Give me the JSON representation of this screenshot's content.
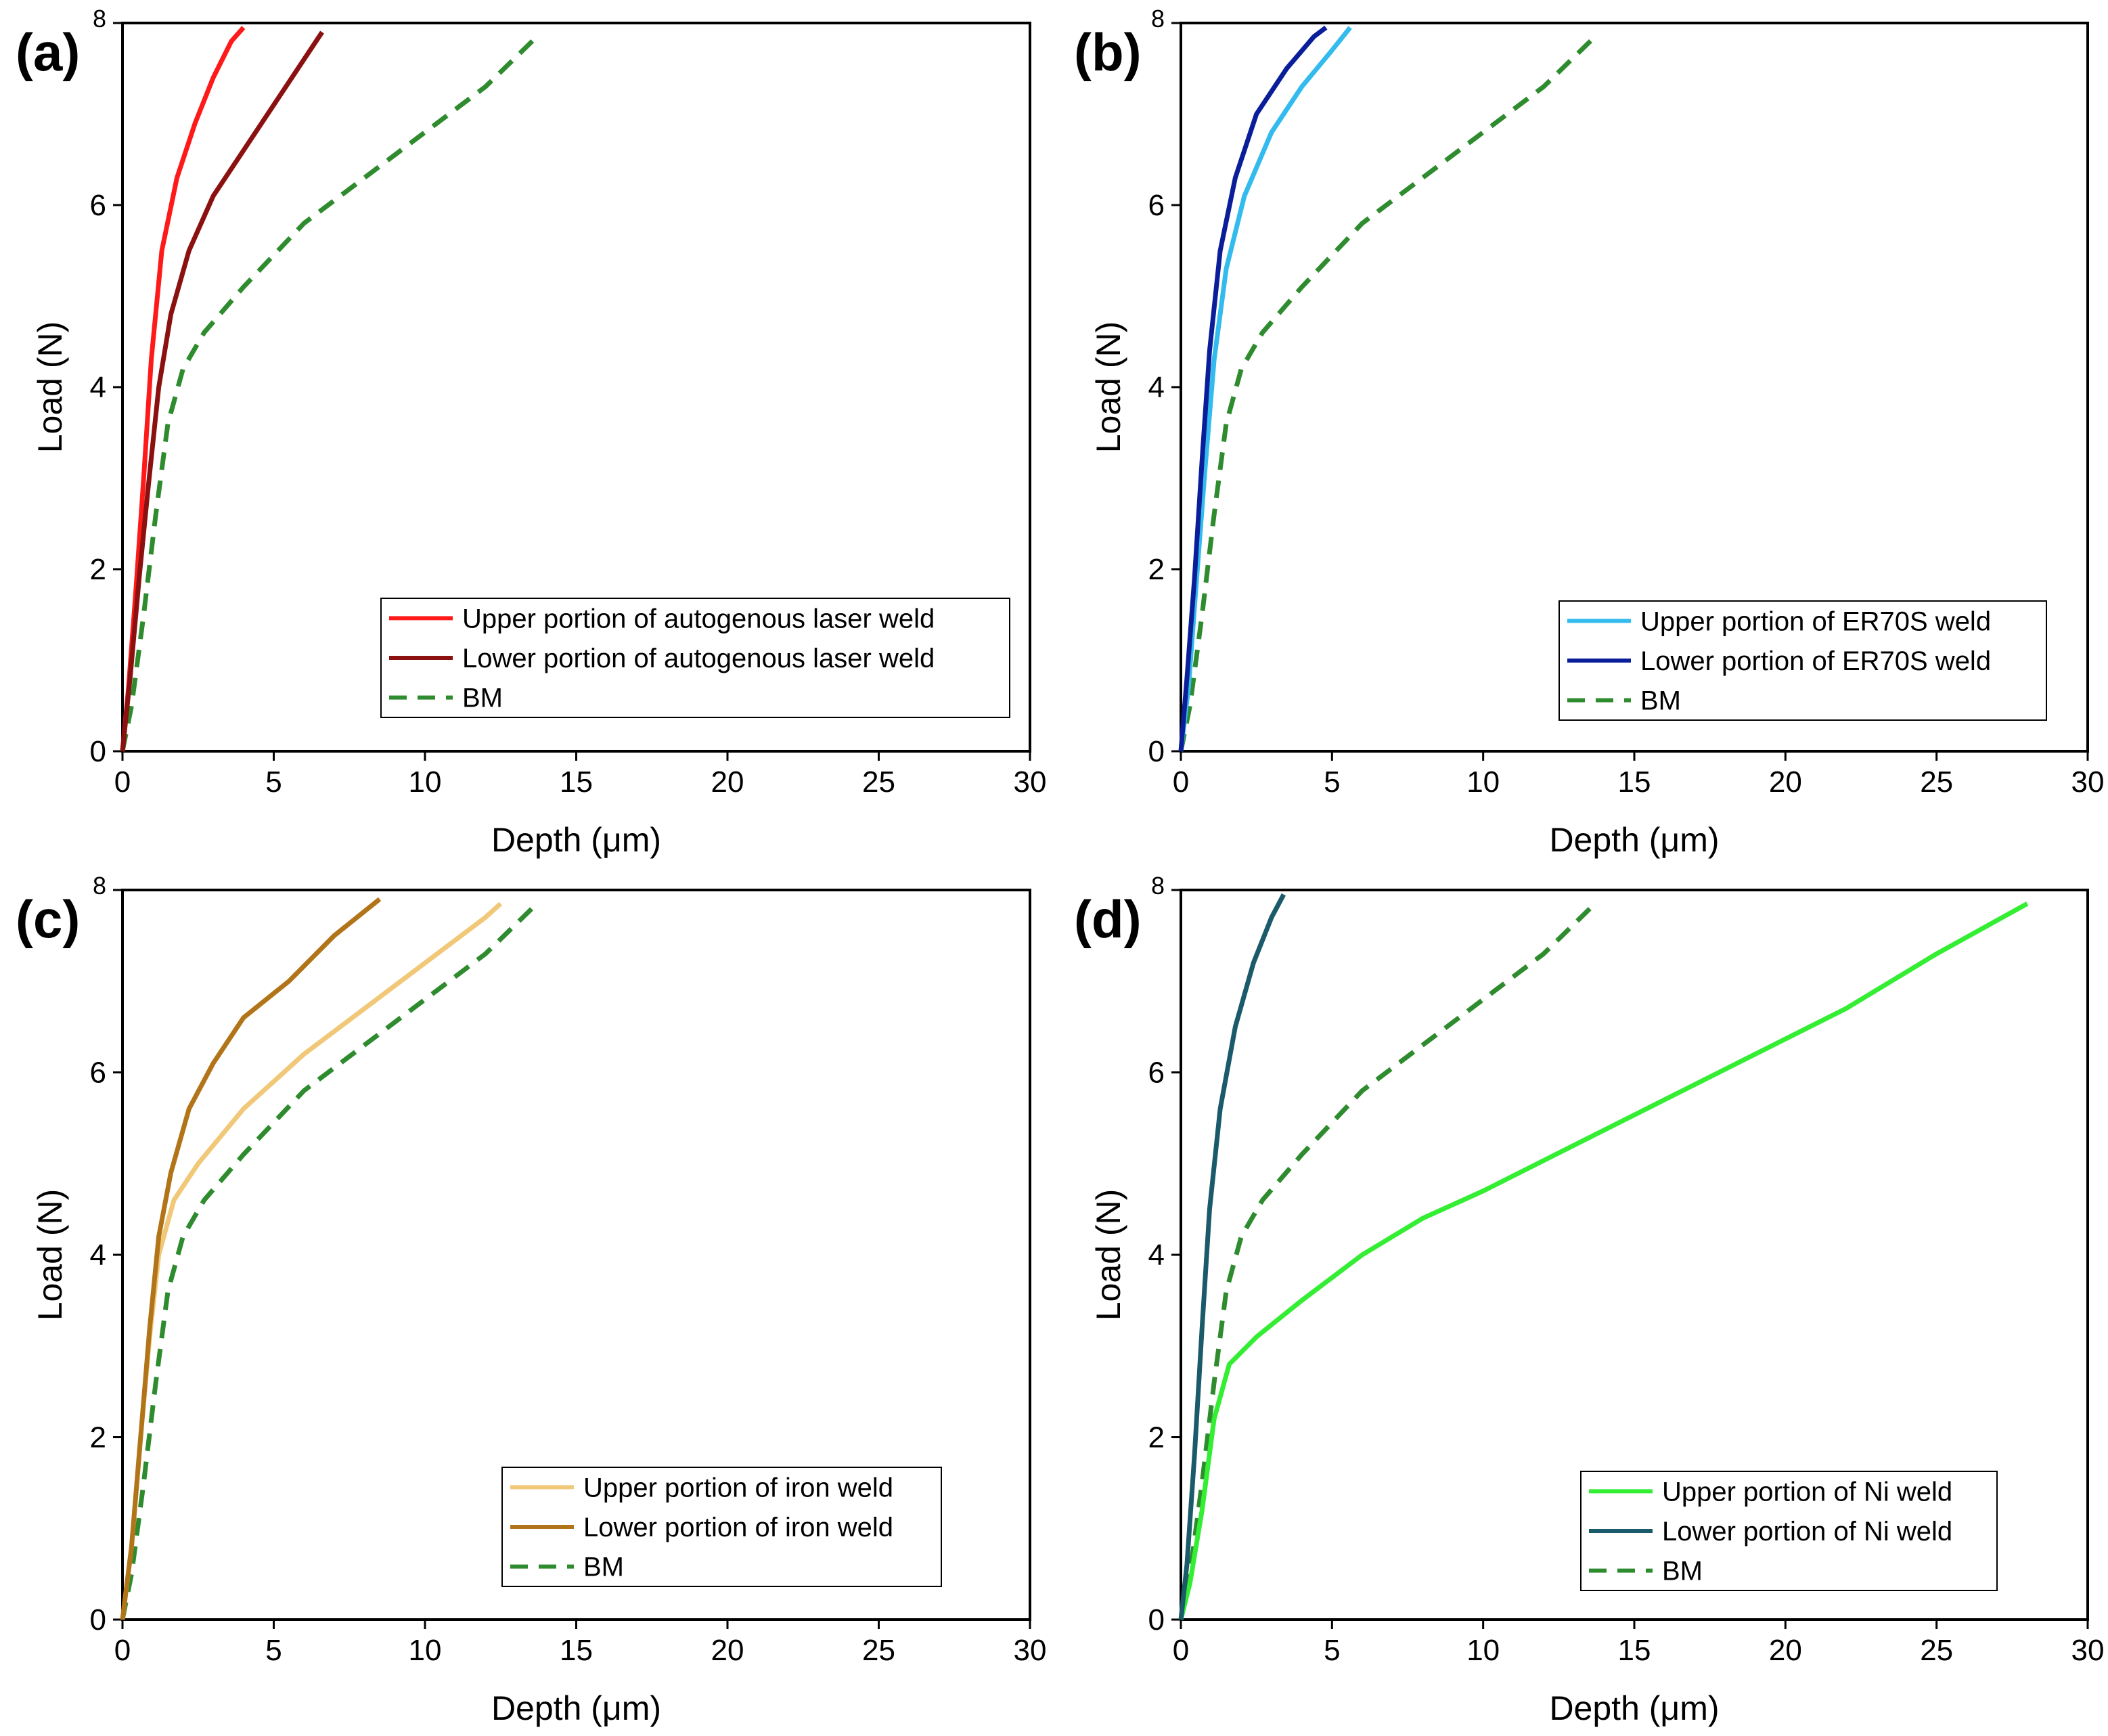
{
  "chart_data": [
    {
      "type": "line",
      "panel_label": "(a)",
      "xlabel": "Depth (μm)",
      "ylabel": "Load (N)",
      "xlim": [
        0,
        30
      ],
      "ylim": [
        0,
        8
      ],
      "xticks": [
        "0",
        "5",
        "10",
        "15",
        "20",
        "25",
        "30"
      ],
      "yticks": [
        "0",
        "2",
        "4",
        "6",
        "8"
      ],
      "legend_position": "bottom-right",
      "series": [
        {
          "name": "Upper portion of autogenous laser weld",
          "color": "#ff1a1a",
          "dash": "solid",
          "points": [
            [
              0,
              0
            ],
            [
              0.2,
              0.7
            ],
            [
              0.45,
              1.8
            ],
            [
              0.7,
              3.0
            ],
            [
              0.95,
              4.3
            ],
            [
              1.3,
              5.5
            ],
            [
              1.8,
              6.3
            ],
            [
              2.4,
              6.9
            ],
            [
              3.0,
              7.4
            ],
            [
              3.6,
              7.8
            ],
            [
              4.0,
              7.95
            ]
          ]
        },
        {
          "name": "Lower portion of autogenous laser weld",
          "color": "#8b1010",
          "dash": "solid",
          "points": [
            [
              0,
              0
            ],
            [
              0.25,
              0.8
            ],
            [
              0.55,
              1.9
            ],
            [
              0.85,
              2.9
            ],
            [
              1.2,
              4.0
            ],
            [
              1.6,
              4.8
            ],
            [
              2.2,
              5.5
            ],
            [
              3.0,
              6.1
            ],
            [
              4.0,
              6.6
            ],
            [
              5.0,
              7.1
            ],
            [
              6.0,
              7.6
            ],
            [
              6.6,
              7.9
            ]
          ]
        },
        {
          "name": "BM",
          "color": "#2e8b2e",
          "dash": "dashed",
          "points": [
            [
              0,
              0
            ],
            [
              0.3,
              0.5
            ],
            [
              0.7,
              1.5
            ],
            [
              1.1,
              2.6
            ],
            [
              1.5,
              3.6
            ],
            [
              2.0,
              4.2
            ],
            [
              2.7,
              4.6
            ],
            [
              4.0,
              5.1
            ],
            [
              6.0,
              5.8
            ],
            [
              8.0,
              6.3
            ],
            [
              10.0,
              6.8
            ],
            [
              12.0,
              7.3
            ],
            [
              13.7,
              7.85
            ]
          ]
        }
      ]
    },
    {
      "type": "line",
      "panel_label": "(b)",
      "xlabel": "Depth (μm)",
      "ylabel": "Load (N)",
      "xlim": [
        0,
        30
      ],
      "ylim": [
        0,
        8
      ],
      "xticks": [
        "0",
        "5",
        "10",
        "15",
        "20",
        "25",
        "30"
      ],
      "yticks": [
        "0",
        "2",
        "4",
        "6",
        "8"
      ],
      "legend_position": "bottom-right",
      "series": [
        {
          "name": "Upper portion of ER70S weld",
          "color": "#33bbee",
          "dash": "solid",
          "points": [
            [
              0,
              0
            ],
            [
              0.25,
              0.7
            ],
            [
              0.5,
              1.8
            ],
            [
              0.8,
              3.1
            ],
            [
              1.1,
              4.3
            ],
            [
              1.5,
              5.3
            ],
            [
              2.1,
              6.1
            ],
            [
              3.0,
              6.8
            ],
            [
              4.0,
              7.3
            ],
            [
              5.0,
              7.7
            ],
            [
              5.6,
              7.95
            ]
          ]
        },
        {
          "name": "Lower portion of ER70S weld",
          "color": "#0a1e9a",
          "dash": "solid",
          "points": [
            [
              0,
              0
            ],
            [
              0.2,
              0.8
            ],
            [
              0.45,
              1.9
            ],
            [
              0.7,
              3.2
            ],
            [
              0.95,
              4.4
            ],
            [
              1.3,
              5.5
            ],
            [
              1.8,
              6.3
            ],
            [
              2.5,
              7.0
            ],
            [
              3.5,
              7.5
            ],
            [
              4.4,
              7.85
            ],
            [
              4.8,
              7.95
            ]
          ]
        },
        {
          "name": "BM",
          "color": "#2e8b2e",
          "dash": "dashed",
          "points": [
            [
              0,
              0
            ],
            [
              0.3,
              0.5
            ],
            [
              0.7,
              1.5
            ],
            [
              1.1,
              2.6
            ],
            [
              1.5,
              3.6
            ],
            [
              2.0,
              4.2
            ],
            [
              2.7,
              4.6
            ],
            [
              4.0,
              5.1
            ],
            [
              6.0,
              5.8
            ],
            [
              8.0,
              6.3
            ],
            [
              10.0,
              6.8
            ],
            [
              12.0,
              7.3
            ],
            [
              13.7,
              7.85
            ]
          ]
        }
      ]
    },
    {
      "type": "line",
      "panel_label": "(c)",
      "xlabel": "Depth (μm)",
      "ylabel": "Load (N)",
      "xlim": [
        0,
        30
      ],
      "ylim": [
        0,
        8
      ],
      "xticks": [
        "0",
        "5",
        "10",
        "15",
        "20",
        "25",
        "30"
      ],
      "yticks": [
        "0",
        "2",
        "4",
        "6",
        "8"
      ],
      "legend_position": "bottom-right",
      "series": [
        {
          "name": "Upper portion of iron weld",
          "color": "#f0c878",
          "dash": "solid",
          "points": [
            [
              0,
              0
            ],
            [
              0.3,
              0.8
            ],
            [
              0.6,
              2.0
            ],
            [
              0.9,
              3.1
            ],
            [
              1.2,
              4.0
            ],
            [
              1.7,
              4.6
            ],
            [
              2.5,
              5.0
            ],
            [
              4.0,
              5.6
            ],
            [
              6.0,
              6.2
            ],
            [
              8.0,
              6.7
            ],
            [
              10.0,
              7.2
            ],
            [
              12.0,
              7.7
            ],
            [
              12.5,
              7.85
            ]
          ]
        },
        {
          "name": "Lower portion of iron weld",
          "color": "#b27418",
          "dash": "solid",
          "points": [
            [
              0,
              0
            ],
            [
              0.3,
              0.8
            ],
            [
              0.6,
              2.0
            ],
            [
              0.9,
              3.2
            ],
            [
              1.2,
              4.2
            ],
            [
              1.6,
              4.9
            ],
            [
              2.2,
              5.6
            ],
            [
              3.0,
              6.1
            ],
            [
              4.0,
              6.6
            ],
            [
              5.5,
              7.0
            ],
            [
              7.0,
              7.5
            ],
            [
              8.5,
              7.9
            ]
          ]
        },
        {
          "name": "BM",
          "color": "#2e8b2e",
          "dash": "dashed",
          "points": [
            [
              0,
              0
            ],
            [
              0.3,
              0.5
            ],
            [
              0.7,
              1.5
            ],
            [
              1.1,
              2.6
            ],
            [
              1.5,
              3.6
            ],
            [
              2.0,
              4.2
            ],
            [
              2.7,
              4.6
            ],
            [
              4.0,
              5.1
            ],
            [
              6.0,
              5.8
            ],
            [
              8.0,
              6.3
            ],
            [
              10.0,
              6.8
            ],
            [
              12.0,
              7.3
            ],
            [
              13.7,
              7.85
            ]
          ]
        }
      ]
    },
    {
      "type": "line",
      "panel_label": "(d)",
      "xlabel": "Depth (μm)",
      "ylabel": "Load (N)",
      "xlim": [
        0,
        30
      ],
      "ylim": [
        0,
        8
      ],
      "xticks": [
        "0",
        "5",
        "10",
        "15",
        "20",
        "25",
        "30"
      ],
      "yticks": [
        "0",
        "2",
        "4",
        "6",
        "8"
      ],
      "legend_position": "bottom-right",
      "series": [
        {
          "name": "Upper portion of Ni weld",
          "color": "#33ee33",
          "dash": "solid",
          "points": [
            [
              0,
              0
            ],
            [
              0.3,
              0.4
            ],
            [
              0.7,
              1.2
            ],
            [
              1.1,
              2.2
            ],
            [
              1.6,
              2.8
            ],
            [
              2.5,
              3.1
            ],
            [
              4.0,
              3.5
            ],
            [
              6.0,
              4.0
            ],
            [
              8.0,
              4.4
            ],
            [
              10.0,
              4.7
            ],
            [
              13.0,
              5.2
            ],
            [
              16.0,
              5.7
            ],
            [
              19.0,
              6.2
            ],
            [
              22.0,
              6.7
            ],
            [
              25.0,
              7.3
            ],
            [
              28.0,
              7.85
            ]
          ]
        },
        {
          "name": "Lower portion of Ni weld",
          "color": "#1a5a6a",
          "dash": "solid",
          "points": [
            [
              0,
              0
            ],
            [
              0.2,
              0.6
            ],
            [
              0.45,
              1.8
            ],
            [
              0.7,
              3.2
            ],
            [
              0.95,
              4.5
            ],
            [
              1.3,
              5.6
            ],
            [
              1.8,
              6.5
            ],
            [
              2.4,
              7.2
            ],
            [
              3.0,
              7.7
            ],
            [
              3.4,
              7.95
            ]
          ]
        },
        {
          "name": "BM",
          "color": "#2e8b2e",
          "dash": "dashed",
          "points": [
            [
              0,
              0
            ],
            [
              0.3,
              0.5
            ],
            [
              0.7,
              1.5
            ],
            [
              1.1,
              2.6
            ],
            [
              1.5,
              3.6
            ],
            [
              2.0,
              4.2
            ],
            [
              2.7,
              4.6
            ],
            [
              4.0,
              5.1
            ],
            [
              6.0,
              5.8
            ],
            [
              8.0,
              6.3
            ],
            [
              10.0,
              6.8
            ],
            [
              12.0,
              7.3
            ],
            [
              13.7,
              7.85
            ]
          ]
        }
      ]
    }
  ]
}
